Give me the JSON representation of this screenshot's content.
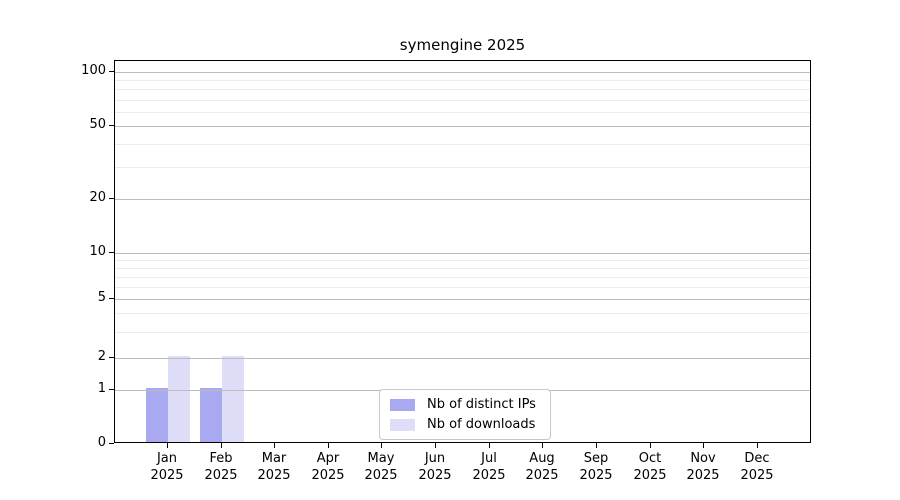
{
  "figure": {
    "background": "#ffffff"
  },
  "chart_data": {
    "type": "bar",
    "title": "symengine 2025",
    "year": "2025",
    "months": [
      "Jan",
      "Feb",
      "Mar",
      "Apr",
      "May",
      "Jun",
      "Jul",
      "Aug",
      "Sep",
      "Oct",
      "Nov",
      "Dec"
    ],
    "categories": [
      "Jan 2025",
      "Feb 2025",
      "Mar 2025",
      "Apr 2025",
      "May 2025",
      "Jun 2025",
      "Jul 2025",
      "Aug 2025",
      "Sep 2025",
      "Oct 2025",
      "Nov 2025",
      "Dec 2025"
    ],
    "series": [
      {
        "name": "Nb of distinct IPs",
        "color": "#a9a9f1",
        "values": [
          1,
          1,
          0,
          0,
          0,
          0,
          0,
          0,
          0,
          0,
          0,
          0
        ]
      },
      {
        "name": "Nb of downloads",
        "color": "#dedef8",
        "values": [
          2,
          2,
          0,
          0,
          0,
          0,
          0,
          0,
          0,
          0,
          0,
          0
        ]
      }
    ],
    "yscale": "symlog",
    "ylim": [
      0,
      110
    ],
    "y_major_ticks": [
      0,
      1,
      2,
      5,
      10,
      20,
      50,
      100
    ],
    "y_minor_gridlines": [
      3,
      4,
      6,
      7,
      8,
      9,
      30,
      40,
      60,
      70,
      80,
      90
    ],
    "y_tick_fractions": {
      "0": 0,
      "1": 0.141,
      "2": 0.225,
      "5": 0.379,
      "10": 0.499,
      "20": 0.64,
      "50": 0.83,
      "100": 0.971
    },
    "grid": {
      "horizontal": true,
      "vertical": false,
      "major_color": "#bdbdbd",
      "minor_color": "#ececec"
    },
    "legend": {
      "position": "lower center",
      "items": [
        "Nb of distinct IPs",
        "Nb of downloads"
      ]
    }
  }
}
